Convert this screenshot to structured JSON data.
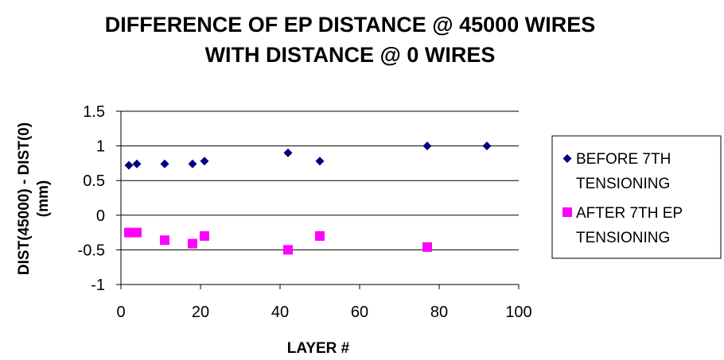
{
  "chart_data": {
    "type": "scatter",
    "title_lines": [
      "DIFFERENCE OF EP DISTANCE @ 45000 WIRES",
      "WITH DISTANCE @ 0 WIRES"
    ],
    "xlabel": "LAYER #",
    "ylabel_lines": [
      "DIST(45000) - DIST(0)",
      "(mm)"
    ],
    "xlim": [
      0,
      100
    ],
    "ylim": [
      -1,
      1.5
    ],
    "x_ticks": [
      0,
      20,
      40,
      60,
      80,
      100
    ],
    "x_tick_labels": [
      "0",
      "20",
      "40",
      "60",
      "80",
      "100"
    ],
    "y_ticks": [
      1.5,
      1,
      0.5,
      0,
      -0.5,
      -1
    ],
    "y_tick_labels": [
      "1.5",
      "1",
      "0.5",
      "0",
      "-0.5",
      "-1"
    ],
    "grid": "horizontal",
    "legend_position": "right",
    "series": [
      {
        "name_lines": [
          "BEFORE 7TH",
          "TENSIONING"
        ],
        "marker": "diamond",
        "color": "#000080",
        "x": [
          2,
          4,
          11,
          18,
          21,
          42,
          50,
          77,
          92
        ],
        "y": [
          0.72,
          0.74,
          0.74,
          0.74,
          0.78,
          0.9,
          0.78,
          1.0,
          1.0
        ]
      },
      {
        "name_lines": [
          "AFTER 7TH EP",
          "TENSIONING"
        ],
        "marker": "square",
        "color": "#ff00ff",
        "x": [
          2,
          4,
          11,
          18,
          21,
          42,
          50,
          77
        ],
        "y": [
          -0.25,
          -0.25,
          -0.36,
          -0.41,
          -0.3,
          -0.5,
          -0.3,
          -0.46
        ]
      }
    ]
  }
}
